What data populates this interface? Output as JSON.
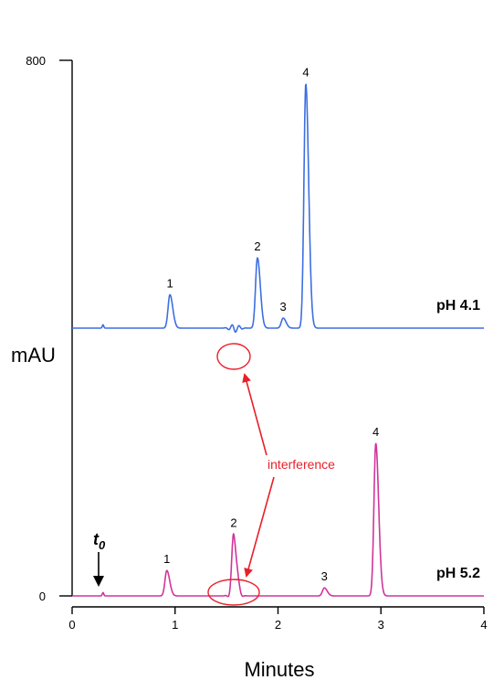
{
  "chart_data": {
    "type": "line",
    "title": "",
    "xlabel": "Minutes",
    "ylabel": "mAU",
    "xlim": [
      0,
      4
    ],
    "ylim": [
      0,
      800
    ],
    "x_ticks": [
      "0",
      "1",
      "2",
      "3",
      "4"
    ],
    "y_ticks": [
      "0",
      "800"
    ],
    "grid": false,
    "series": [
      {
        "name": "pH 4.1",
        "color": "#3d6fe0",
        "baseline": 400,
        "peaks": [
          {
            "label": "1",
            "x": 0.95,
            "height": 50
          },
          {
            "label": "2",
            "x": 1.8,
            "height": 105
          },
          {
            "label": "3",
            "x": 2.05,
            "height": 15
          },
          {
            "label": "4",
            "x": 2.27,
            "height": 365
          }
        ]
      },
      {
        "name": "pH 5.2",
        "color": "#d0359a",
        "baseline": 0,
        "peaks": [
          {
            "label": "1",
            "x": 0.92,
            "height": 38
          },
          {
            "label": "2",
            "x": 1.57,
            "height": 92
          },
          {
            "label": "3",
            "x": 2.45,
            "height": 12
          },
          {
            "label": "4",
            "x": 2.95,
            "height": 228
          }
        ]
      }
    ],
    "annotations": {
      "interference_label": "interference",
      "t0_label": "t",
      "t0_subscript": "0",
      "t0_x": 0.27
    }
  }
}
